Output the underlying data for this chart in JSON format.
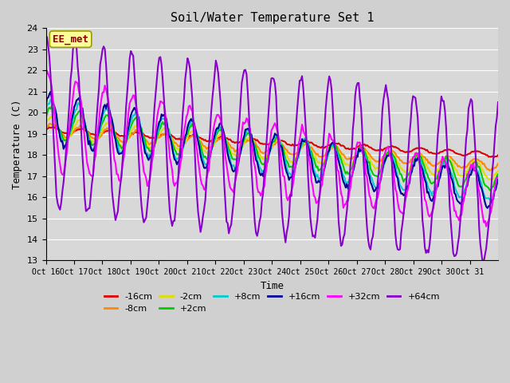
{
  "title": "Soil/Water Temperature Set 1",
  "xlabel": "Time",
  "ylabel": "Temperature (C)",
  "ylim": [
    13.0,
    24.0
  ],
  "yticks": [
    13.0,
    14.0,
    15.0,
    16.0,
    17.0,
    18.0,
    19.0,
    20.0,
    21.0,
    22.0,
    23.0,
    24.0
  ],
  "xtick_labels": [
    "Oct 16",
    "Oct 17",
    "Oct 18",
    "Oct 19",
    "Oct 20",
    "Oct 21",
    "Oct 22",
    "Oct 23",
    "Oct 24",
    "Oct 25",
    "Oct 26",
    "Oct 27",
    "Oct 28",
    "Oct 29",
    "Oct 30",
    "Oct 31"
  ],
  "n_days": 16,
  "fig_facecolor": "#d0d0d0",
  "plot_bg_color": "#d8d8d8",
  "grid_color": "#ffffff",
  "series": [
    {
      "label": "-16cm",
      "color": "#dd0000",
      "lw": 1.5
    },
    {
      "label": "-8cm",
      "color": "#ff8800",
      "lw": 1.5
    },
    {
      "label": "-2cm",
      "color": "#dddd00",
      "lw": 1.5
    },
    {
      "label": "+2cm",
      "color": "#00cc00",
      "lw": 1.5
    },
    {
      "label": "+8cm",
      "color": "#00cccc",
      "lw": 1.5
    },
    {
      "label": "+16cm",
      "color": "#000099",
      "lw": 1.5
    },
    {
      "label": "+32cm",
      "color": "#ff00ff",
      "lw": 1.5
    },
    {
      "label": "+64cm",
      "color": "#8800cc",
      "lw": 1.5
    }
  ],
  "annotation_text": "EE_met",
  "annotation_color": "#8B0000",
  "annotation_bg": "#ffff99",
  "annotation_edge": "#999900"
}
